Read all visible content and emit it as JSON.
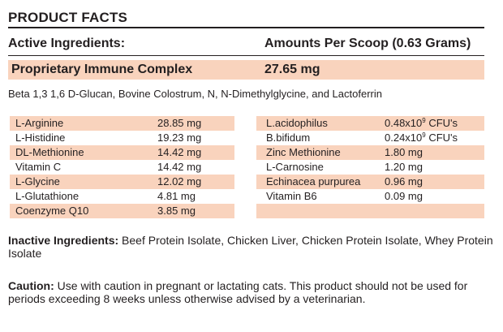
{
  "title": "PRODUCT FACTS",
  "header": {
    "left": "Active Ingredients:",
    "right": "Amounts Per Scoop (0.63 Grams)"
  },
  "complex": {
    "name": "Proprietary Immune Complex",
    "amount": "27.65 mg",
    "description": "Beta 1,3 1,6 D-Glucan, Bovine Colostrum, N, N-Dimethylglycine, and Lactoferrin"
  },
  "left_items": [
    {
      "name": "L-Arginine",
      "amount": "28.85 mg"
    },
    {
      "name": "L-Histidine",
      "amount": "19.23 mg"
    },
    {
      "name": "DL-Methionine",
      "amount": "14.42 mg"
    },
    {
      "name": "Vitamin C",
      "amount": "14.42 mg"
    },
    {
      "name": "L-Glycine",
      "amount": "12.02 mg"
    },
    {
      "name": "L-Glutathione",
      "amount": "4.81 mg"
    },
    {
      "name": "Coenzyme Q10",
      "amount": "3.85 mg"
    }
  ],
  "right_items": [
    {
      "name": "L.acidophilus",
      "amount_base": "0.48x10",
      "amount_exp": "9",
      "amount_unit": " CFU's"
    },
    {
      "name": "B.bifidum",
      "amount_base": "0.24x10",
      "amount_exp": "9",
      "amount_unit": " CFU's"
    },
    {
      "name": "Zinc Methionine",
      "amount_base": "1.80 mg"
    },
    {
      "name": "L-Carnosine",
      "amount_base": "1.20 mg"
    },
    {
      "name": "Echinacea purpurea",
      "amount_base": "0.96 mg"
    },
    {
      "name": "Vitamin B6",
      "amount_base": "0.09 mg"
    }
  ],
  "inactive": {
    "label": "Inactive Ingredients:",
    "text": " Beef Protein Isolate, Chicken Liver, Chicken Protein Isolate, Whey Protein Isolate"
  },
  "caution": {
    "label": "Caution:",
    "text": " Use with caution in pregnant or lactating cats. This product should not be used for periods exceeding 8 weeks unless otherwise advised by a veterinarian."
  },
  "colors": {
    "shade": "#f9d3bd",
    "text": "#231f20"
  }
}
